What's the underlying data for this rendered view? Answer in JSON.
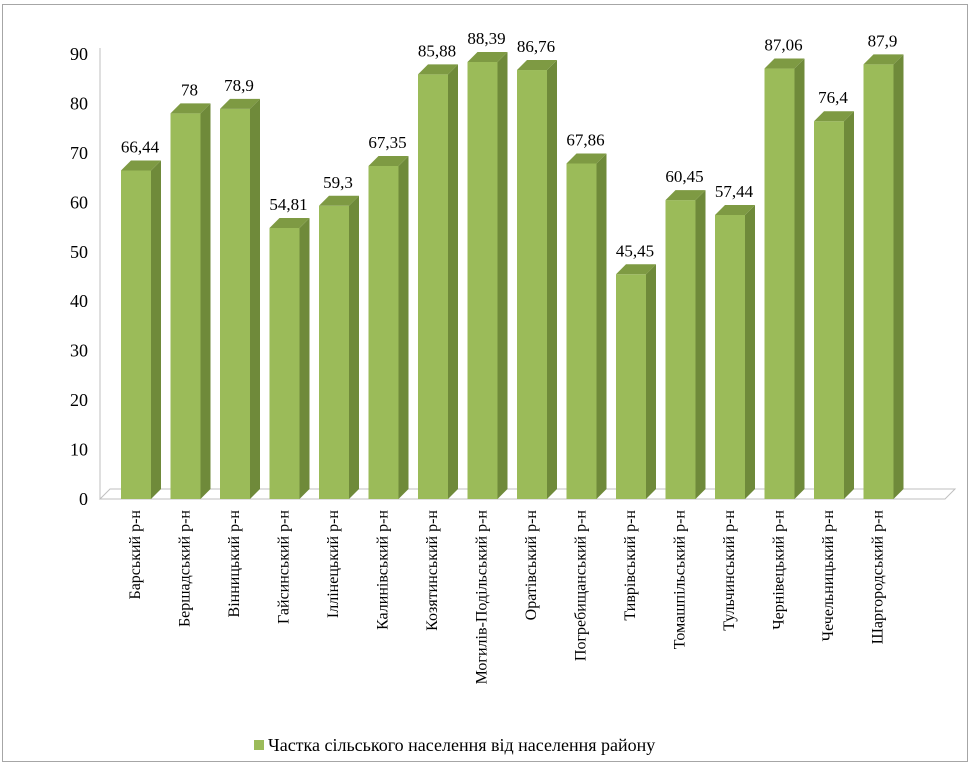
{
  "chart_data": {
    "type": "bar",
    "title": "",
    "xlabel": "",
    "ylabel": "",
    "ylim": [
      0,
      90
    ],
    "y_ticks": [
      "0",
      "10",
      "20",
      "30",
      "40",
      "50",
      "60",
      "70",
      "80",
      "90"
    ],
    "grid": false,
    "legend_position": "bottom",
    "style": "3d-columns",
    "categories": [
      "Барський р-н",
      "Бершадський р-н",
      "Вінницький р-н",
      "Гайсинський р-н",
      "Іллінецький р-н",
      "Калинівський р-н",
      "Козятинський р-н",
      "Могилів-Подільський р-н",
      "Оратівський р-н",
      "Погребищанський р-н",
      "Тиврівський р-н",
      "Томашпільський р-н",
      "Тульчинський р-н",
      "Чернівецький р-н",
      "Чечельницький р-н",
      "Шаргородський р-н"
    ],
    "series": [
      {
        "name": "Частка сільського населення від населення району",
        "values": [
          66.44,
          78,
          78.9,
          54.81,
          59.3,
          67.35,
          85.88,
          88.39,
          86.76,
          67.86,
          45.45,
          60.45,
          57.44,
          87.06,
          76.4,
          87.9
        ],
        "labels": [
          "66,44",
          "78",
          "78,9",
          "54,81",
          "59,3",
          "67,35",
          "85,88",
          "88,39",
          "86,76",
          "67,86",
          "45,45",
          "60,45",
          "57,44",
          "87,06",
          "76,4",
          "87,9"
        ],
        "color": "#9bbb59",
        "side_color": "#6f8a3a",
        "top_color": "#7e9a43"
      }
    ]
  }
}
